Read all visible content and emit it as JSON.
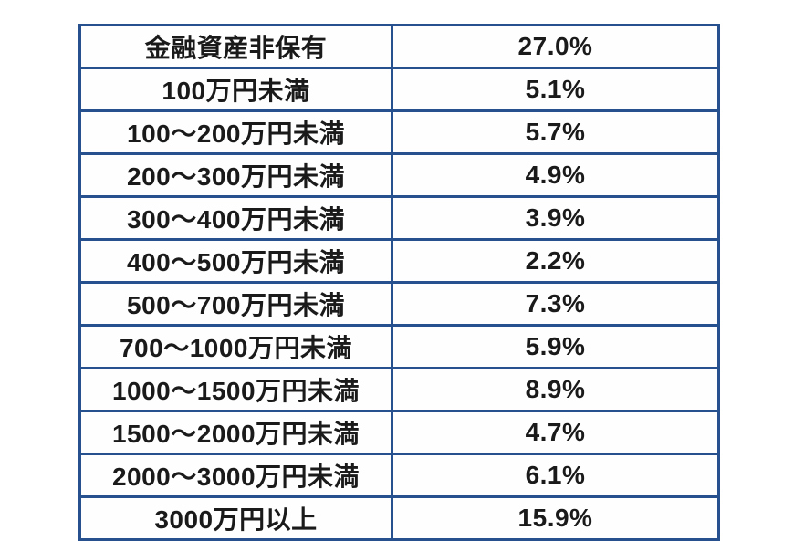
{
  "table": {
    "border_color": "#26508e",
    "text_color": "#1a1a1a",
    "background": "#ffffff",
    "columns": [
      "asset-range",
      "percentage"
    ],
    "rows": [
      {
        "label": "金融資産非保有",
        "value": "27.0%"
      },
      {
        "label": "100万円未満",
        "value": "5.1%"
      },
      {
        "label": "100〜200万円未満",
        "value": "5.7%"
      },
      {
        "label": "200〜300万円未満",
        "value": "4.9%"
      },
      {
        "label": "300〜400万円未満",
        "value": "3.9%"
      },
      {
        "label": "400〜500万円未満",
        "value": "2.2%"
      },
      {
        "label": "500〜700万円未満",
        "value": "7.3%"
      },
      {
        "label": "700〜1000万円未満",
        "value": "5.9%"
      },
      {
        "label": "1000〜1500万円未満",
        "value": "8.9%"
      },
      {
        "label": "1500〜2000万円未満",
        "value": "4.7%"
      },
      {
        "label": "2000〜3000万円未満",
        "value": "6.1%"
      },
      {
        "label": "3000万円以上",
        "value": "15.9%"
      }
    ]
  },
  "chart_data": {
    "type": "table",
    "title": "",
    "categories": [
      "金融資産非保有",
      "100万円未満",
      "100〜200万円未満",
      "200〜300万円未満",
      "300〜400万円未満",
      "400〜500万円未満",
      "500〜700万円未満",
      "700〜1000万円未満",
      "1000〜1500万円未満",
      "1500〜2000万円未満",
      "2000〜3000万円未満",
      "3000万円以上"
    ],
    "values": [
      27.0,
      5.1,
      5.7,
      4.9,
      3.9,
      2.2,
      7.3,
      5.9,
      8.9,
      4.7,
      6.1,
      15.9
    ],
    "value_unit": "percent",
    "legend_position": "none",
    "grid": true
  }
}
